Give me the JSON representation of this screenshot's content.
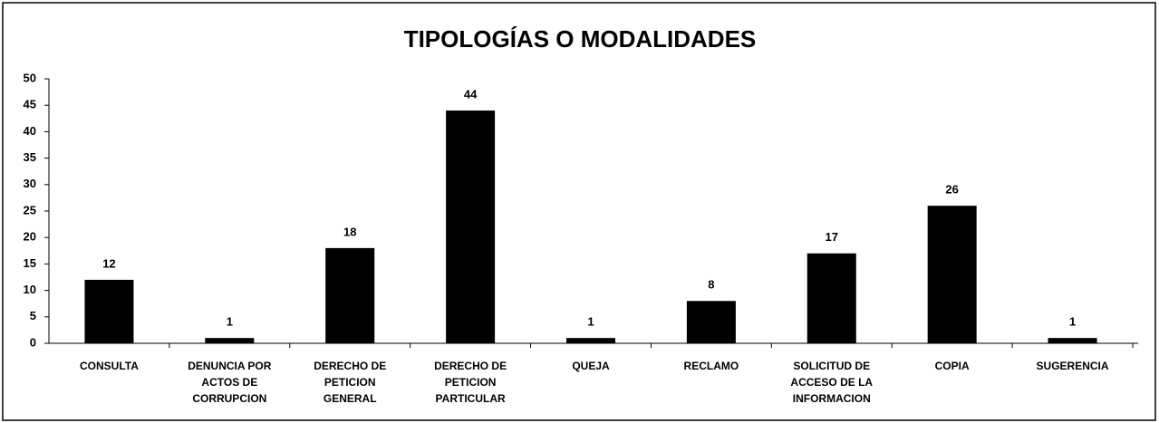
{
  "chart_data": {
    "type": "bar",
    "title": "TIPOLOGÍAS O MODALIDADES",
    "categories": [
      "CONSULTA",
      "DENUNCIA POR ACTOS DE CORRUPCION",
      "DERECHO DE PETICION GENERAL",
      "DERECHO DE PETICION PARTICULAR",
      "QUEJA",
      "RECLAMO",
      "SOLICITUD DE ACCESO DE LA INFORMACION",
      "COPIA",
      "SUGERENCIA"
    ],
    "values": [
      12,
      1,
      18,
      44,
      1,
      8,
      17,
      26,
      1
    ],
    "color": "#000000",
    "ylim": [
      0,
      50
    ],
    "yticks": [
      0,
      5,
      10,
      15,
      20,
      25,
      30,
      35,
      40,
      45,
      50
    ],
    "grid": false
  }
}
